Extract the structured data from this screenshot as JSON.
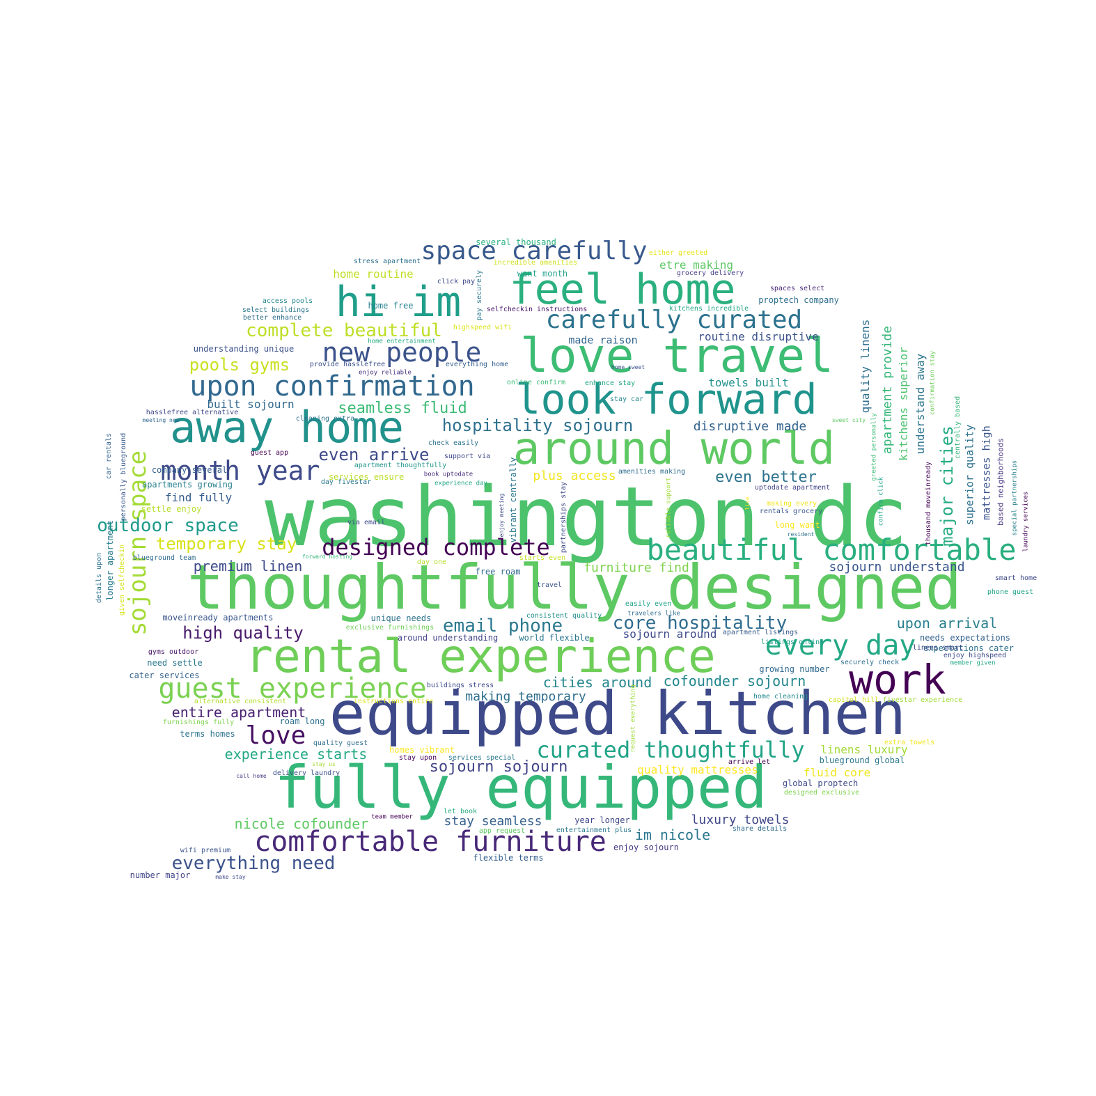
{
  "words": [
    {
      "text": "washington dc",
      "color": "#4cc26c"
    },
    {
      "text": "thoughtfully designed",
      "color": "#5ec962"
    },
    {
      "text": "equipped kitchen",
      "color": "#3e4989"
    },
    {
      "text": "fully equipped",
      "color": "#35b779"
    },
    {
      "text": "rental experience",
      "color": "#6ece58"
    },
    {
      "text": "love travel",
      "color": "#3dbc74"
    },
    {
      "text": "around world",
      "color": "#5ec962"
    },
    {
      "text": "away home",
      "color": "#21918c"
    },
    {
      "text": "look forward",
      "color": "#1f948c"
    },
    {
      "text": "feel home",
      "color": "#2ab07f"
    },
    {
      "text": "hi im",
      "color": "#1f9e89"
    },
    {
      "text": "work",
      "color": "#440154"
    },
    {
      "text": "beautiful comfortable",
      "color": "#29af7f"
    },
    {
      "text": "upon confirmation",
      "color": "#31688e"
    },
    {
      "text": "guest experience",
      "color": "#7ad151"
    },
    {
      "text": "comfortable furniture",
      "color": "#482878"
    },
    {
      "text": "every day",
      "color": "#22a884"
    },
    {
      "text": "new people",
      "color": "#3b528b"
    },
    {
      "text": "space carefully",
      "color": "#38598c"
    },
    {
      "text": "carefully curated",
      "color": "#2c728e"
    },
    {
      "text": "month year",
      "color": "#3e4a89"
    },
    {
      "text": "designed complete",
      "color": "#440154"
    },
    {
      "text": "curated thoughtfully",
      "color": "#20a386"
    },
    {
      "text": "love",
      "color": "#471063"
    },
    {
      "text": "sojourn space",
      "color": "#a5db36"
    },
    {
      "text": "complete beautiful",
      "color": "#bddf26"
    },
    {
      "text": "email phone",
      "color": "#2a788e"
    },
    {
      "text": "core hospitality",
      "color": "#2f6c8e"
    },
    {
      "text": "outdoor space",
      "color": "#1f9a8a"
    },
    {
      "text": "everything need",
      "color": "#3b528b"
    },
    {
      "text": "hospitality sojourn",
      "color": "#2d708e"
    },
    {
      "text": "temporary stay",
      "color": "#d8e219"
    },
    {
      "text": "high quality",
      "color": "#481a6c"
    },
    {
      "text": "even arrive",
      "color": "#3e4a89"
    },
    {
      "text": "seamless fluid",
      "color": "#3bbb75"
    },
    {
      "text": "pools gyms",
      "color": "#c8e020"
    },
    {
      "text": "nicole cofounder",
      "color": "#5ec962"
    },
    {
      "text": "sojourn sojourn",
      "color": "#414487"
    },
    {
      "text": "even better",
      "color": "#2c728e"
    },
    {
      "text": "major cities",
      "color": "#25ac82"
    },
    {
      "text": "premium linen",
      "color": "#3e4a89"
    },
    {
      "text": "upon arrival",
      "color": "#277f8e"
    },
    {
      "text": "entire apartment",
      "color": "#482173"
    },
    {
      "text": "cities around",
      "color": "#24868e"
    },
    {
      "text": "cofounder sojourn",
      "color": "#23888e"
    },
    {
      "text": "experience starts",
      "color": "#22a884"
    },
    {
      "text": "stay seamless",
      "color": "#35608d"
    },
    {
      "text": "luxury towels",
      "color": "#3f4788"
    },
    {
      "text": "im nicole",
      "color": "#2a768e"
    },
    {
      "text": "quality mattresses",
      "color": "#fde725"
    },
    {
      "text": "linens luxury",
      "color": "#a2da37"
    },
    {
      "text": "plus access",
      "color": "#f1e51d"
    },
    {
      "text": "making temporary",
      "color": "#2e6e8e"
    },
    {
      "text": "sojourn understand",
      "color": "#39568c"
    },
    {
      "text": "furniture find",
      "color": "#7fd34e"
    },
    {
      "text": "disruptive made",
      "color": "#33628d"
    },
    {
      "text": "routine disruptive",
      "color": "#3b528b"
    },
    {
      "text": "towels built",
      "color": "#21918c"
    },
    {
      "text": "etre making",
      "color": "#5cc863"
    },
    {
      "text": "home routine",
      "color": "#c0df25"
    },
    {
      "text": "made raison",
      "color": "#32648e"
    },
    {
      "text": "built sojourn",
      "color": "#31688e"
    },
    {
      "text": "find fully",
      "color": "#365d8d"
    },
    {
      "text": "fluid core",
      "color": "#efe51c"
    },
    {
      "text": "sojourn around",
      "color": "#3e4a89"
    },
    {
      "text": "quality linens",
      "color": "#2e6e8e"
    },
    {
      "text": "apartment provide",
      "color": "#35b779"
    },
    {
      "text": "kitchens superior",
      "color": "#4ac16d"
    },
    {
      "text": "understand away",
      "color": "#2b758e"
    },
    {
      "text": "superior quality",
      "color": "#2d708e"
    },
    {
      "text": "mattresses high",
      "color": "#3a548c"
    },
    {
      "text": "based neighborhoods",
      "color": "#46337f"
    },
    {
      "text": "proptech company",
      "color": "#2e6e8e"
    },
    {
      "text": "want month",
      "color": "#1fa088"
    },
    {
      "text": "several thousand",
      "color": "#29af7f"
    },
    {
      "text": "free roam",
      "color": "#306a8e"
    },
    {
      "text": "unique needs",
      "color": "#2c738e"
    },
    {
      "text": "moveinready apartments",
      "color": "#39568c"
    },
    {
      "text": "understanding unique",
      "color": "#3b528b"
    },
    {
      "text": "company several",
      "color": "#355f8d"
    },
    {
      "text": "apartments growing",
      "color": "#27808e"
    },
    {
      "text": "need settle",
      "color": "#2a788e"
    },
    {
      "text": "cater services",
      "color": "#33638d"
    },
    {
      "text": "terms homes",
      "color": "#2c738e"
    },
    {
      "text": "roam long",
      "color": "#2d708e"
    },
    {
      "text": "year longer",
      "color": "#3f4889"
    },
    {
      "text": "enjoy sojourn",
      "color": "#453781"
    },
    {
      "text": "flexible terms",
      "color": "#355f8d"
    },
    {
      "text": "number major",
      "color": "#404588"
    },
    {
      "text": "global proptech",
      "color": "#3e4989"
    },
    {
      "text": "blueground global",
      "color": "#2a768e"
    },
    {
      "text": "growing number",
      "color": "#30698e"
    },
    {
      "text": "expectations cater",
      "color": "#2c718e"
    },
    {
      "text": "needs expectations",
      "color": "#34618d"
    },
    {
      "text": "around understanding",
      "color": "#414487"
    },
    {
      "text": "world flexible",
      "color": "#2a788e"
    },
    {
      "text": "services ensure",
      "color": "#b8de29"
    },
    {
      "text": "settle enjoy",
      "color": "#b5de2b"
    },
    {
      "text": "access pools",
      "color": "#24868e"
    },
    {
      "text": "select buildings",
      "color": "#2a768e"
    },
    {
      "text": "better enhance",
      "color": "#2e6f8e"
    },
    {
      "text": "hasslefree alternative",
      "color": "#3e4989"
    },
    {
      "text": "meeting new",
      "color": "#31688e"
    },
    {
      "text": "car rentals",
      "color": "#33628d"
    },
    {
      "text": "personally blueground",
      "color": "#38598c"
    },
    {
      "text": "longer apartment",
      "color": "#287c8e"
    },
    {
      "text": "details upon",
      "color": "#2c718e"
    },
    {
      "text": "given selfcheckin",
      "color": "#d5e21a"
    },
    {
      "text": "blueground team",
      "color": "#2f6b8e"
    },
    {
      "text": "gyms outdoor",
      "color": "#471365"
    },
    {
      "text": "alternative consistent",
      "color": "#b2dd2d"
    },
    {
      "text": "furnishings fully",
      "color": "#7fd34e"
    },
    {
      "text": "call home",
      "color": "#433e85"
    },
    {
      "text": "wifi premium",
      "color": "#3a538b"
    },
    {
      "text": "make stay",
      "color": "#3e4a89"
    },
    {
      "text": "stress apartment",
      "color": "#2d708e"
    },
    {
      "text": "click pay",
      "color": "#3f4788"
    },
    {
      "text": "pay securely",
      "color": "#2a788e"
    },
    {
      "text": "incredible amenities",
      "color": "#d0e11c"
    },
    {
      "text": "home free",
      "color": "#26828e"
    },
    {
      "text": "selfcheckin instructions",
      "color": "#481467"
    },
    {
      "text": "highspeed wifi",
      "color": "#dde318"
    },
    {
      "text": "home entertainment",
      "color": "#25ab82"
    },
    {
      "text": "provide hasslefree",
      "color": "#3b528b"
    },
    {
      "text": "enjoy reliable",
      "color": "#46307e"
    },
    {
      "text": "everything home",
      "color": "#355f8d"
    },
    {
      "text": "either greeted",
      "color": "#e5e419"
    },
    {
      "text": "grocery delivery",
      "color": "#433e85"
    },
    {
      "text": "kitchens incredible",
      "color": "#22a785"
    },
    {
      "text": "spaces select",
      "color": "#482878"
    },
    {
      "text": "home sweet",
      "color": "#3b528b"
    },
    {
      "text": "online confirm",
      "color": "#3bbb75"
    },
    {
      "text": "enhance stay",
      "color": "#20a486"
    },
    {
      "text": "stay car",
      "color": "#24878e"
    },
    {
      "text": "cleaning extra",
      "color": "#2d708e"
    },
    {
      "text": "check easily",
      "color": "#2c718e"
    },
    {
      "text": "support via",
      "color": "#3e4a89"
    },
    {
      "text": "guest app",
      "color": "#440154"
    },
    {
      "text": "apartment thoughtfully",
      "color": "#1f968b"
    },
    {
      "text": "book uptodate",
      "color": "#472d7b"
    },
    {
      "text": "day fivestar",
      "color": "#2a788e"
    },
    {
      "text": "experience day",
      "color": "#20a386"
    },
    {
      "text": "amenities making",
      "color": "#2e6e8e"
    },
    {
      "text": "uptodate apartment",
      "color": "#414487"
    },
    {
      "text": "making every",
      "color": "#f1e51d"
    },
    {
      "text": "long want",
      "color": "#fde725"
    },
    {
      "text": "rentals grocery",
      "color": "#39568c"
    },
    {
      "text": "resident",
      "color": "#2d708e"
    },
    {
      "text": "via email",
      "color": "#3e4989"
    },
    {
      "text": "forward hosting",
      "color": "#35b779"
    },
    {
      "text": "day one",
      "color": "#b5de2b"
    },
    {
      "text": "starts even",
      "color": "#c2df23"
    },
    {
      "text": "travel",
      "color": "#3b528b"
    },
    {
      "text": "smart home",
      "color": "#3e4989"
    },
    {
      "text": "phone guest",
      "color": "#1fa187"
    },
    {
      "text": "easily even",
      "color": "#20a386"
    },
    {
      "text": "travelers like",
      "color": "#2f6c8e"
    },
    {
      "text": "consistent quality",
      "color": "#21918c"
    },
    {
      "text": "exclusive furnishings",
      "color": "#6ece58"
    },
    {
      "text": "apartment listings",
      "color": "#38598c"
    },
    {
      "text": "listings online",
      "color": "#1fa088"
    },
    {
      "text": "securely check",
      "color": "#2f6c8e"
    },
    {
      "text": "linens smart",
      "color": "#3e4a89"
    },
    {
      "text": "enjoy highspeed",
      "color": "#3e4a89"
    },
    {
      "text": "member given",
      "color": "#22a884"
    },
    {
      "text": "home cleaning",
      "color": "#23898e"
    },
    {
      "text": "capitol hill",
      "color": "#d0e11c"
    },
    {
      "text": "fivestar experience",
      "color": "#a0da39"
    },
    {
      "text": "buildings stress",
      "color": "#3e4a89"
    },
    {
      "text": "instructions entire",
      "color": "#dde318"
    },
    {
      "text": "quality guest",
      "color": "#2e6e8e"
    },
    {
      "text": "homes vibrant",
      "color": "#fde725"
    },
    {
      "text": "stay upon",
      "color": "#440154"
    },
    {
      "text": "services special",
      "color": "#2a788e"
    },
    {
      "text": "stay us",
      "color": "#a5db36"
    },
    {
      "text": "delivery laundry",
      "color": "#3b528b"
    },
    {
      "text": "arrive let",
      "color": "#440154"
    },
    {
      "text": "extra towels",
      "color": "#f1e51d"
    },
    {
      "text": "designed exclusive",
      "color": "#7fd34e"
    },
    {
      "text": "let book",
      "color": "#29af7f"
    },
    {
      "text": "team member",
      "color": "#440154"
    },
    {
      "text": "app request",
      "color": "#5ec962"
    },
    {
      "text": "entertainment plus",
      "color": "#2a788e"
    },
    {
      "text": "share details",
      "color": "#2f6b8e"
    },
    {
      "text": "vibrant centrally",
      "color": "#2a788e"
    },
    {
      "text": "partnerships stay",
      "color": "#3e4989"
    },
    {
      "text": "enjoy meeting",
      "color": "#3e4a89"
    },
    {
      "text": "reliable support",
      "color": "#a0da39"
    },
    {
      "text": "request everything",
      "color": "#a0da39"
    },
    {
      "text": "live",
      "color": "#fde725"
    },
    {
      "text": "thousand moveinready",
      "color": "#440154"
    },
    {
      "text": "sweet city",
      "color": "#5ec962"
    },
    {
      "text": "greeted personally",
      "color": "#3bbb75"
    },
    {
      "text": "confirm click",
      "color": "#20a486"
    },
    {
      "text": "centrally based",
      "color": "#35b779"
    },
    {
      "text": "confirmation stay",
      "color": "#6ece58"
    },
    {
      "text": "special partnerships",
      "color": "#27808e"
    },
    {
      "text": "laundry services",
      "color": "#440154"
    }
  ]
}
